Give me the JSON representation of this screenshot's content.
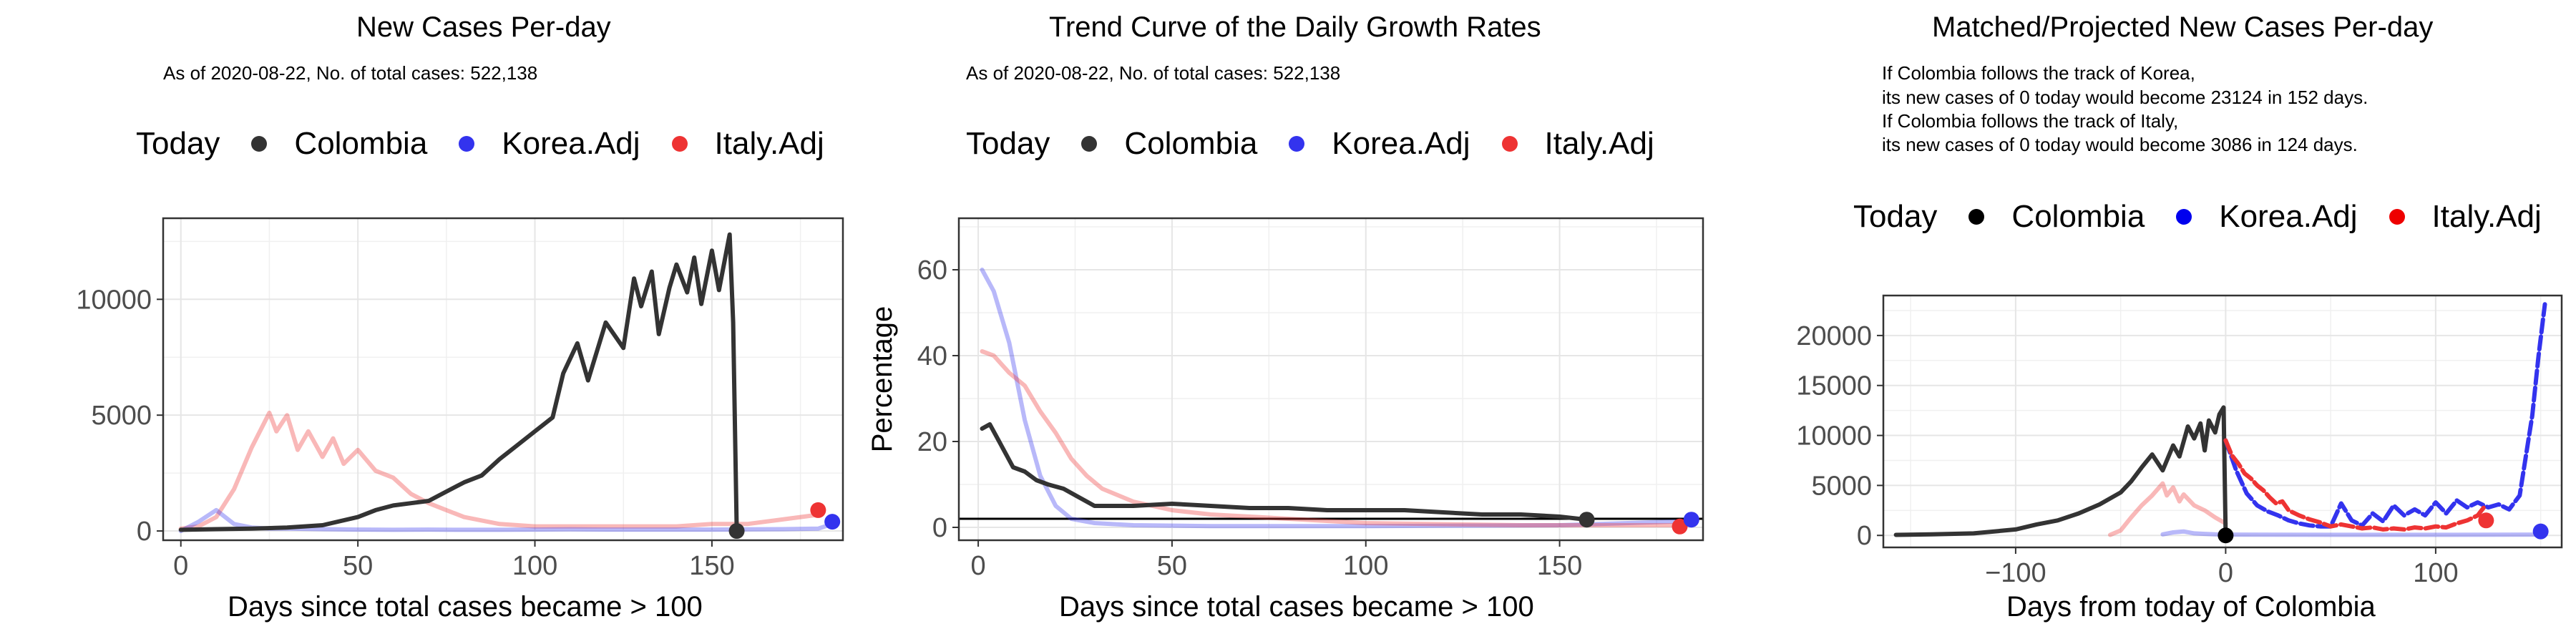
{
  "legend": {
    "title": "Today",
    "entries": [
      {
        "label": "Colombia",
        "color": "#333333"
      },
      {
        "label": "Korea.Adj",
        "color": "#3333ee"
      },
      {
        "label": "Italy.Adj",
        "color": "#ee3333"
      }
    ]
  },
  "panels": {
    "p1": {
      "title": "New Cases Per-day",
      "subtitle": "As of 2020-08-22, No. of total cases: 522,138",
      "xlabel": "Days since total cases became > 100"
    },
    "p2": {
      "title": "Trend Curve of the Daily Growth Rates",
      "subtitle": "As of 2020-08-22, No. of total cases: 522,138",
      "xlabel": "Days since total cases became > 100",
      "ylabel": "Percentage"
    },
    "p3": {
      "title": "Matched/Projected New Cases Per-day",
      "subtitle_lines": [
        "If Colombia follows the track of Korea,",
        "its new cases of 0 today would become 23124 in 152 days.",
        "If Colombia follows the track of Italy,",
        "its new cases of 0 today would become 3086 in 124 days."
      ],
      "xlabel": "Days from today of Colombia"
    }
  },
  "chart_data": [
    {
      "type": "line",
      "title": "New Cases Per-day",
      "xlabel": "Days since total cases became > 100",
      "ylabel": "",
      "xlim": [
        -5,
        187
      ],
      "ylim": [
        -400,
        13500
      ],
      "xticks": [
        0,
        50,
        100,
        150
      ],
      "yticks": [
        0,
        5000,
        10000
      ],
      "series": [
        {
          "name": "Italy.Adj",
          "color": "#ee3333",
          "opacity": 0.35,
          "x": [
            0,
            5,
            10,
            15,
            20,
            25,
            27,
            30,
            33,
            36,
            40,
            43,
            46,
            50,
            55,
            60,
            65,
            70,
            75,
            80,
            90,
            100,
            110,
            120,
            130,
            140,
            150,
            160,
            170,
            180
          ],
          "y": [
            100,
            200,
            600,
            1800,
            3600,
            5100,
            4300,
            5000,
            3500,
            4300,
            3200,
            4000,
            2900,
            3500,
            2600,
            2300,
            1600,
            1200,
            900,
            600,
            300,
            200,
            200,
            200,
            200,
            200,
            300,
            300,
            500,
            700
          ]
        },
        {
          "name": "Korea.Adj",
          "color": "#3333ee",
          "opacity": 0.35,
          "x": [
            0,
            5,
            10,
            15,
            20,
            25,
            30,
            40,
            50,
            60,
            70,
            80,
            90,
            100,
            110,
            120,
            130,
            140,
            150,
            160,
            170,
            180,
            184
          ],
          "y": [
            0,
            400,
            900,
            300,
            150,
            100,
            100,
            80,
            60,
            50,
            60,
            50,
            50,
            60,
            70,
            60,
            60,
            60,
            60,
            70,
            80,
            100,
            300
          ]
        },
        {
          "name": "Colombia",
          "color": "#333333",
          "opacity": 1,
          "x": [
            0,
            10,
            20,
            30,
            40,
            50,
            55,
            60,
            65,
            70,
            75,
            80,
            85,
            90,
            95,
            100,
            105,
            108,
            112,
            115,
            120,
            125,
            128,
            130,
            133,
            135,
            138,
            140,
            143,
            145,
            147,
            150,
            152,
            155,
            156,
            157
          ],
          "y": [
            50,
            80,
            100,
            150,
            250,
            600,
            900,
            1100,
            1200,
            1300,
            1700,
            2100,
            2400,
            3100,
            3700,
            4300,
            4900,
            6800,
            8100,
            6500,
            9000,
            7900,
            10900,
            9700,
            11200,
            8500,
            10500,
            11500,
            10300,
            11800,
            9800,
            12100,
            10400,
            12800,
            9000,
            0
          ]
        }
      ],
      "today_points": [
        {
          "name": "Colombia",
          "x": 157,
          "y": 0
        },
        {
          "name": "Italy.Adj",
          "x": 180,
          "y": 900
        },
        {
          "name": "Korea.Adj",
          "x": 184,
          "y": 400
        }
      ]
    },
    {
      "type": "line",
      "title": "Trend Curve of the Daily Growth Rates",
      "xlabel": "Days since total cases became > 100",
      "ylabel": "Percentage",
      "xlim": [
        -5,
        187
      ],
      "ylim": [
        -3,
        72
      ],
      "xticks": [
        0,
        50,
        100,
        150
      ],
      "yticks": [
        0,
        20,
        40,
        60
      ],
      "hline": 2,
      "series": [
        {
          "name": "Korea.Adj",
          "color": "#3333ee",
          "opacity": 0.35,
          "x": [
            1,
            4,
            8,
            12,
            16,
            20,
            24,
            30,
            40,
            60,
            100,
            150,
            185
          ],
          "y": [
            60,
            55,
            43,
            25,
            12,
            5,
            2,
            1,
            0.5,
            0.3,
            0.3,
            0.5,
            1.5
          ]
        },
        {
          "name": "Italy.Adj",
          "color": "#ee3333",
          "opacity": 0.35,
          "x": [
            1,
            4,
            8,
            12,
            16,
            20,
            24,
            28,
            32,
            40,
            50,
            60,
            80,
            100,
            140,
            180
          ],
          "y": [
            41,
            40,
            36,
            33,
            27,
            22,
            16,
            12,
            9,
            6,
            4,
            3,
            2,
            1,
            0.5,
            0.5
          ]
        },
        {
          "name": "Colombia",
          "color": "#333333",
          "opacity": 1,
          "x": [
            1,
            3,
            6,
            9,
            12,
            15,
            18,
            22,
            26,
            30,
            40,
            50,
            60,
            70,
            80,
            90,
            100,
            110,
            120,
            130,
            140,
            150,
            157
          ],
          "y": [
            23,
            24,
            19,
            14,
            13,
            11,
            10,
            9,
            7,
            5,
            5,
            5.5,
            5,
            4.5,
            4.5,
            4,
            4,
            4,
            3.5,
            3,
            3,
            2.5,
            1.8
          ]
        }
      ],
      "today_points": [
        {
          "name": "Colombia",
          "x": 157,
          "y": 1.8
        },
        {
          "name": "Italy.Adj",
          "x": 181,
          "y": 0.2
        },
        {
          "name": "Korea.Adj",
          "x": 184,
          "y": 1.8
        }
      ]
    },
    {
      "type": "line",
      "title": "Matched/Projected New Cases Per-day",
      "xlabel": "Days from today of Colombia",
      "ylabel": "",
      "xlim": [
        -163,
        160
      ],
      "ylim": [
        -1200,
        24000
      ],
      "xticks": [
        -100,
        0,
        100
      ],
      "yticks": [
        0,
        5000,
        10000,
        15000,
        20000
      ],
      "series": [
        {
          "name": "Korea.Adj (matched)",
          "color": "#3333ee",
          "opacity": 0.35,
          "x": [
            -30,
            -25,
            -20,
            -15,
            -10,
            -5,
            0,
            50,
            100,
            150
          ],
          "y": [
            100,
            300,
            400,
            200,
            150,
            100,
            80,
            60,
            60,
            80
          ]
        },
        {
          "name": "Italy.Adj (matched)",
          "color": "#ee3333",
          "opacity": 0.35,
          "x": [
            -55,
            -50,
            -45,
            -40,
            -35,
            -30,
            -28,
            -25,
            -22,
            -20,
            -15,
            -10,
            -5,
            0
          ],
          "y": [
            50,
            500,
            1800,
            3000,
            4000,
            5200,
            4000,
            4800,
            3400,
            4100,
            3000,
            2500,
            1800,
            1200
          ]
        },
        {
          "name": "Colombia",
          "color": "#333333",
          "opacity": 1,
          "x": [
            -157,
            -140,
            -120,
            -100,
            -90,
            -80,
            -70,
            -60,
            -50,
            -45,
            -40,
            -35,
            -30,
            -25,
            -22,
            -18,
            -15,
            -12,
            -10,
            -8,
            -5,
            -3,
            -1,
            0
          ],
          "y": [
            50,
            100,
            200,
            600,
            1100,
            1500,
            2200,
            3100,
            4300,
            5400,
            6800,
            8100,
            6500,
            9000,
            7900,
            10900,
            9700,
            11200,
            8500,
            11500,
            10300,
            12100,
            12800,
            0
          ]
        },
        {
          "name": "Korea.Adj (projected)",
          "color": "#3333ee",
          "opacity": 1,
          "dashed": true,
          "x": [
            0,
            5,
            10,
            15,
            20,
            25,
            30,
            35,
            40,
            45,
            50,
            55,
            60,
            65,
            70,
            75,
            80,
            85,
            90,
            95,
            100,
            105,
            110,
            115,
            120,
            125,
            130,
            135,
            140,
            143,
            146,
            149,
            152
          ],
          "y": [
            9500,
            6500,
            4200,
            3000,
            2400,
            2000,
            1500,
            1200,
            1000,
            900,
            900,
            3200,
            1500,
            1000,
            2200,
            1400,
            3000,
            2000,
            2600,
            2000,
            3300,
            2200,
            3500,
            2800,
            3300,
            2800,
            3100,
            2600,
            4000,
            8000,
            12000,
            18000,
            23124
          ]
        },
        {
          "name": "Italy.Adj (projected)",
          "color": "#ee3333",
          "opacity": 1,
          "dashed": true,
          "x": [
            0,
            3,
            6,
            9,
            12,
            15,
            18,
            21,
            24,
            27,
            30,
            35,
            40,
            45,
            50,
            55,
            60,
            65,
            70,
            75,
            80,
            85,
            90,
            95,
            100,
            105,
            110,
            115,
            120,
            124
          ],
          "y": [
            9500,
            8000,
            7200,
            6200,
            5700,
            5000,
            4500,
            3800,
            3200,
            3400,
            2500,
            2000,
            1600,
            1300,
            900,
            1100,
            900,
            700,
            800,
            600,
            700,
            600,
            800,
            700,
            900,
            800,
            1200,
            1500,
            2000,
            3086
          ]
        }
      ],
      "today_points": [
        {
          "name": "Colombia",
          "x": 0,
          "y": 0
        },
        {
          "name": "Italy.Adj",
          "x": 124,
          "y": 1500
        },
        {
          "name": "Korea.Adj",
          "x": 150,
          "y": 400
        }
      ]
    }
  ]
}
